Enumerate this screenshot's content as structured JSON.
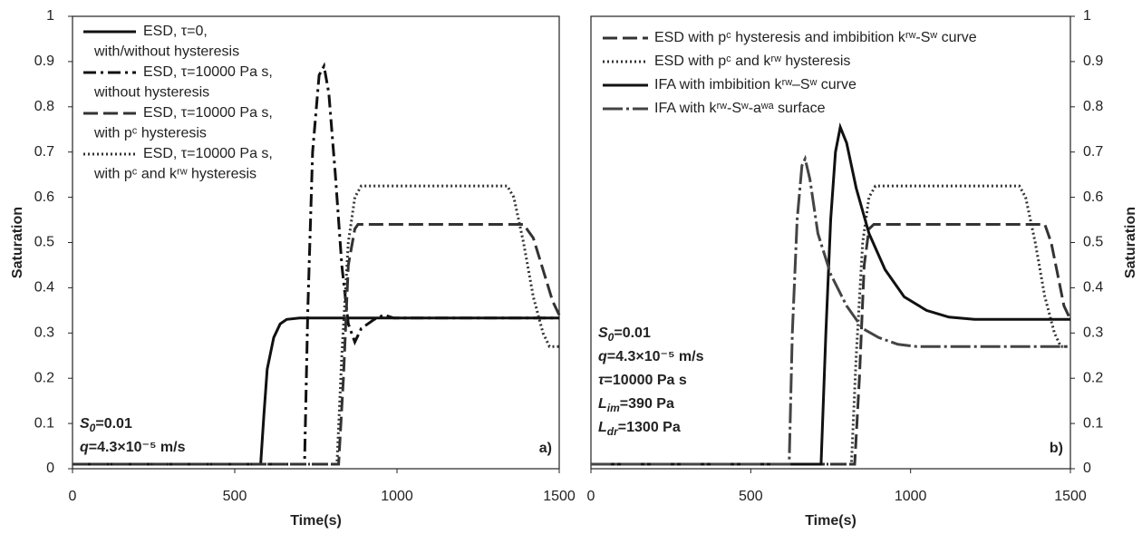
{
  "chart_data": [
    {
      "type": "line",
      "panel_label": "a)",
      "x_label": "Time(s)",
      "y_label": "Saturation",
      "y_axis_side": "left",
      "xlim": [
        0,
        1500
      ],
      "xticks": [
        0,
        500,
        1000,
        1500
      ],
      "ylim": [
        0,
        1
      ],
      "yticks": [
        0,
        0.1,
        0.2,
        0.3,
        0.4,
        0.5,
        0.6,
        0.7,
        0.8,
        0.9,
        1
      ],
      "grid": false,
      "annotations": [
        {
          "symbol": "S",
          "sub": "0",
          "rest": "=0.01"
        },
        {
          "symbol": "q",
          "rest": "=4.3×10⁻⁵ m/s"
        }
      ],
      "series": [
        {
          "name": [
            "ESD, τ=0,",
            "with/without  hysteresis"
          ],
          "color": "#111111",
          "dash": "solid",
          "x": [
            0,
            580,
            590,
            600,
            620,
            640,
            660,
            700,
            1500
          ],
          "values": [
            0.01,
            0.01,
            0.12,
            0.22,
            0.29,
            0.32,
            0.33,
            0.333,
            0.333
          ]
        },
        {
          "name": [
            "ESD, τ=10000 Pa s,",
            "without hysteresis"
          ],
          "color": "#111111",
          "dash": "dashdot",
          "x": [
            0,
            715,
            725,
            740,
            760,
            775,
            790,
            810,
            830,
            850,
            870,
            890,
            930,
            960,
            990,
            1500
          ],
          "values": [
            0.01,
            0.01,
            0.35,
            0.7,
            0.87,
            0.89,
            0.83,
            0.65,
            0.45,
            0.32,
            0.28,
            0.31,
            0.33,
            0.34,
            0.333,
            0.333
          ]
        },
        {
          "name": [
            "ESD, τ=10000 Pa s,",
            "with pᶜ hysteresis"
          ],
          "color": "#333333",
          "dash": "dashed",
          "x": [
            0,
            820,
            835,
            850,
            870,
            880,
            1390,
            1420,
            1450,
            1480,
            1500
          ],
          "values": [
            0.01,
            0.01,
            0.2,
            0.45,
            0.53,
            0.54,
            0.54,
            0.51,
            0.44,
            0.37,
            0.34
          ]
        },
        {
          "name": [
            "ESD, τ=10000 Pa s,",
            "with pᶜ and kʳʷ hysteresis"
          ],
          "color": "#333333",
          "dash": "dotted",
          "x": [
            0,
            815,
            830,
            850,
            870,
            890,
            1340,
            1360,
            1390,
            1420,
            1450,
            1470,
            1500
          ],
          "values": [
            0.01,
            0.01,
            0.25,
            0.5,
            0.6,
            0.625,
            0.625,
            0.6,
            0.5,
            0.38,
            0.3,
            0.27,
            0.27
          ]
        }
      ]
    },
    {
      "type": "line",
      "panel_label": "b)",
      "x_label": "Time(s)",
      "y_label": "Saturation",
      "y_axis_side": "right",
      "xlim": [
        0,
        1500
      ],
      "xticks": [
        0,
        500,
        1000,
        1500
      ],
      "ylim": [
        0,
        1
      ],
      "yticks": [
        0,
        0.1,
        0.2,
        0.3,
        0.4,
        0.5,
        0.6,
        0.7,
        0.8,
        0.9,
        1
      ],
      "grid": false,
      "annotations": [
        {
          "symbol": "S",
          "sub": "0",
          "rest": "=0.01"
        },
        {
          "symbol": "q",
          "rest": "=4.3×10⁻⁵ m/s"
        },
        {
          "symbol": "τ",
          "rest": "=10000 Pa s"
        },
        {
          "symbol": "L",
          "sub": "im",
          "rest": "=390 Pa"
        },
        {
          "symbol": "L",
          "sub": "dr",
          "rest": "=1300 Pa"
        }
      ],
      "series": [
        {
          "name": [
            "ESD with pᶜ hysteresis and imbibition kʳʷ-Sʷ curve"
          ],
          "color": "#333333",
          "dash": "dashed",
          "x": [
            0,
            825,
            840,
            855,
            870,
            885,
            1420,
            1440,
            1460,
            1480,
            1500
          ],
          "values": [
            0.01,
            0.01,
            0.2,
            0.45,
            0.53,
            0.54,
            0.54,
            0.5,
            0.43,
            0.36,
            0.33
          ]
        },
        {
          "name": [
            "ESD with pᶜ and kʳʷ hysteresis"
          ],
          "color": "#333333",
          "dash": "dotted",
          "x": [
            0,
            815,
            830,
            850,
            870,
            890,
            1340,
            1360,
            1390,
            1420,
            1450,
            1470,
            1500
          ],
          "values": [
            0.01,
            0.01,
            0.25,
            0.5,
            0.6,
            0.625,
            0.625,
            0.6,
            0.5,
            0.38,
            0.3,
            0.27,
            0.27
          ]
        },
        {
          "name": [
            "IFA with imbibition kʳʷ–Sʷ curve"
          ],
          "color": "#111111",
          "dash": "solid",
          "x": [
            0,
            720,
            735,
            750,
            765,
            780,
            800,
            830,
            870,
            920,
            980,
            1050,
            1120,
            1200,
            1500
          ],
          "values": [
            0.01,
            0.01,
            0.3,
            0.55,
            0.7,
            0.755,
            0.72,
            0.62,
            0.52,
            0.44,
            0.38,
            0.35,
            0.335,
            0.33,
            0.33
          ]
        },
        {
          "name": [
            "IFA with kʳʷ-Sʷ-aʷᵃ  surface"
          ],
          "color": "#444444",
          "dash": "longdashdot",
          "x": [
            0,
            620,
            630,
            645,
            660,
            670,
            685,
            710,
            750,
            800,
            850,
            900,
            960,
            1020,
            1500
          ],
          "values": [
            0.01,
            0.01,
            0.3,
            0.55,
            0.67,
            0.685,
            0.64,
            0.52,
            0.43,
            0.36,
            0.31,
            0.29,
            0.275,
            0.27,
            0.27
          ]
        }
      ]
    }
  ]
}
